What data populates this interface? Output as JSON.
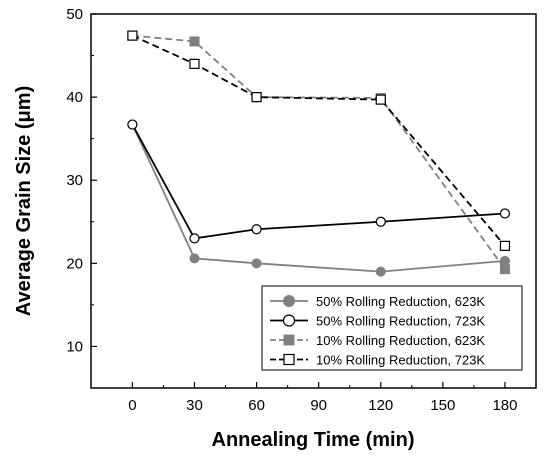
{
  "chart_data": {
    "type": "line",
    "title": "",
    "xlabel": "Annealing Time (min)",
    "ylabel": "Average Grain Size (μm)",
    "xlim": [
      -20,
      195
    ],
    "ylim": [
      5,
      50
    ],
    "xticks": [
      0,
      30,
      60,
      90,
      120,
      150,
      180
    ],
    "yticks": [
      10,
      20,
      30,
      40,
      50
    ],
    "grid": false,
    "legend_position": "bottom-right",
    "series": [
      {
        "name": "50% Rolling Reduction, 623K",
        "color": "#808080",
        "line_style": "solid",
        "marker": "filled-circle",
        "x": [
          0,
          30,
          60,
          120,
          180
        ],
        "y": [
          36.7,
          20.6,
          20.0,
          19.0,
          20.3
        ]
      },
      {
        "name": "50% Rolling Reduction, 723K",
        "color": "#000000",
        "line_style": "solid",
        "marker": "open-circle",
        "x": [
          0,
          30,
          60,
          120,
          180
        ],
        "y": [
          36.7,
          23.0,
          24.1,
          25.0,
          26.0
        ]
      },
      {
        "name": "10% Rolling Reduction, 623K",
        "color": "#808080",
        "line_style": "dashed",
        "marker": "filled-square",
        "x": [
          0,
          30,
          60,
          120,
          180
        ],
        "y": [
          47.4,
          46.7,
          40.0,
          39.9,
          19.3
        ]
      },
      {
        "name": "10% Rolling Reduction, 723K",
        "color": "#000000",
        "line_style": "dashed",
        "marker": "open-square",
        "x": [
          0,
          30,
          60,
          120,
          180
        ],
        "y": [
          47.4,
          44.0,
          40.0,
          39.7,
          22.1
        ]
      }
    ]
  }
}
